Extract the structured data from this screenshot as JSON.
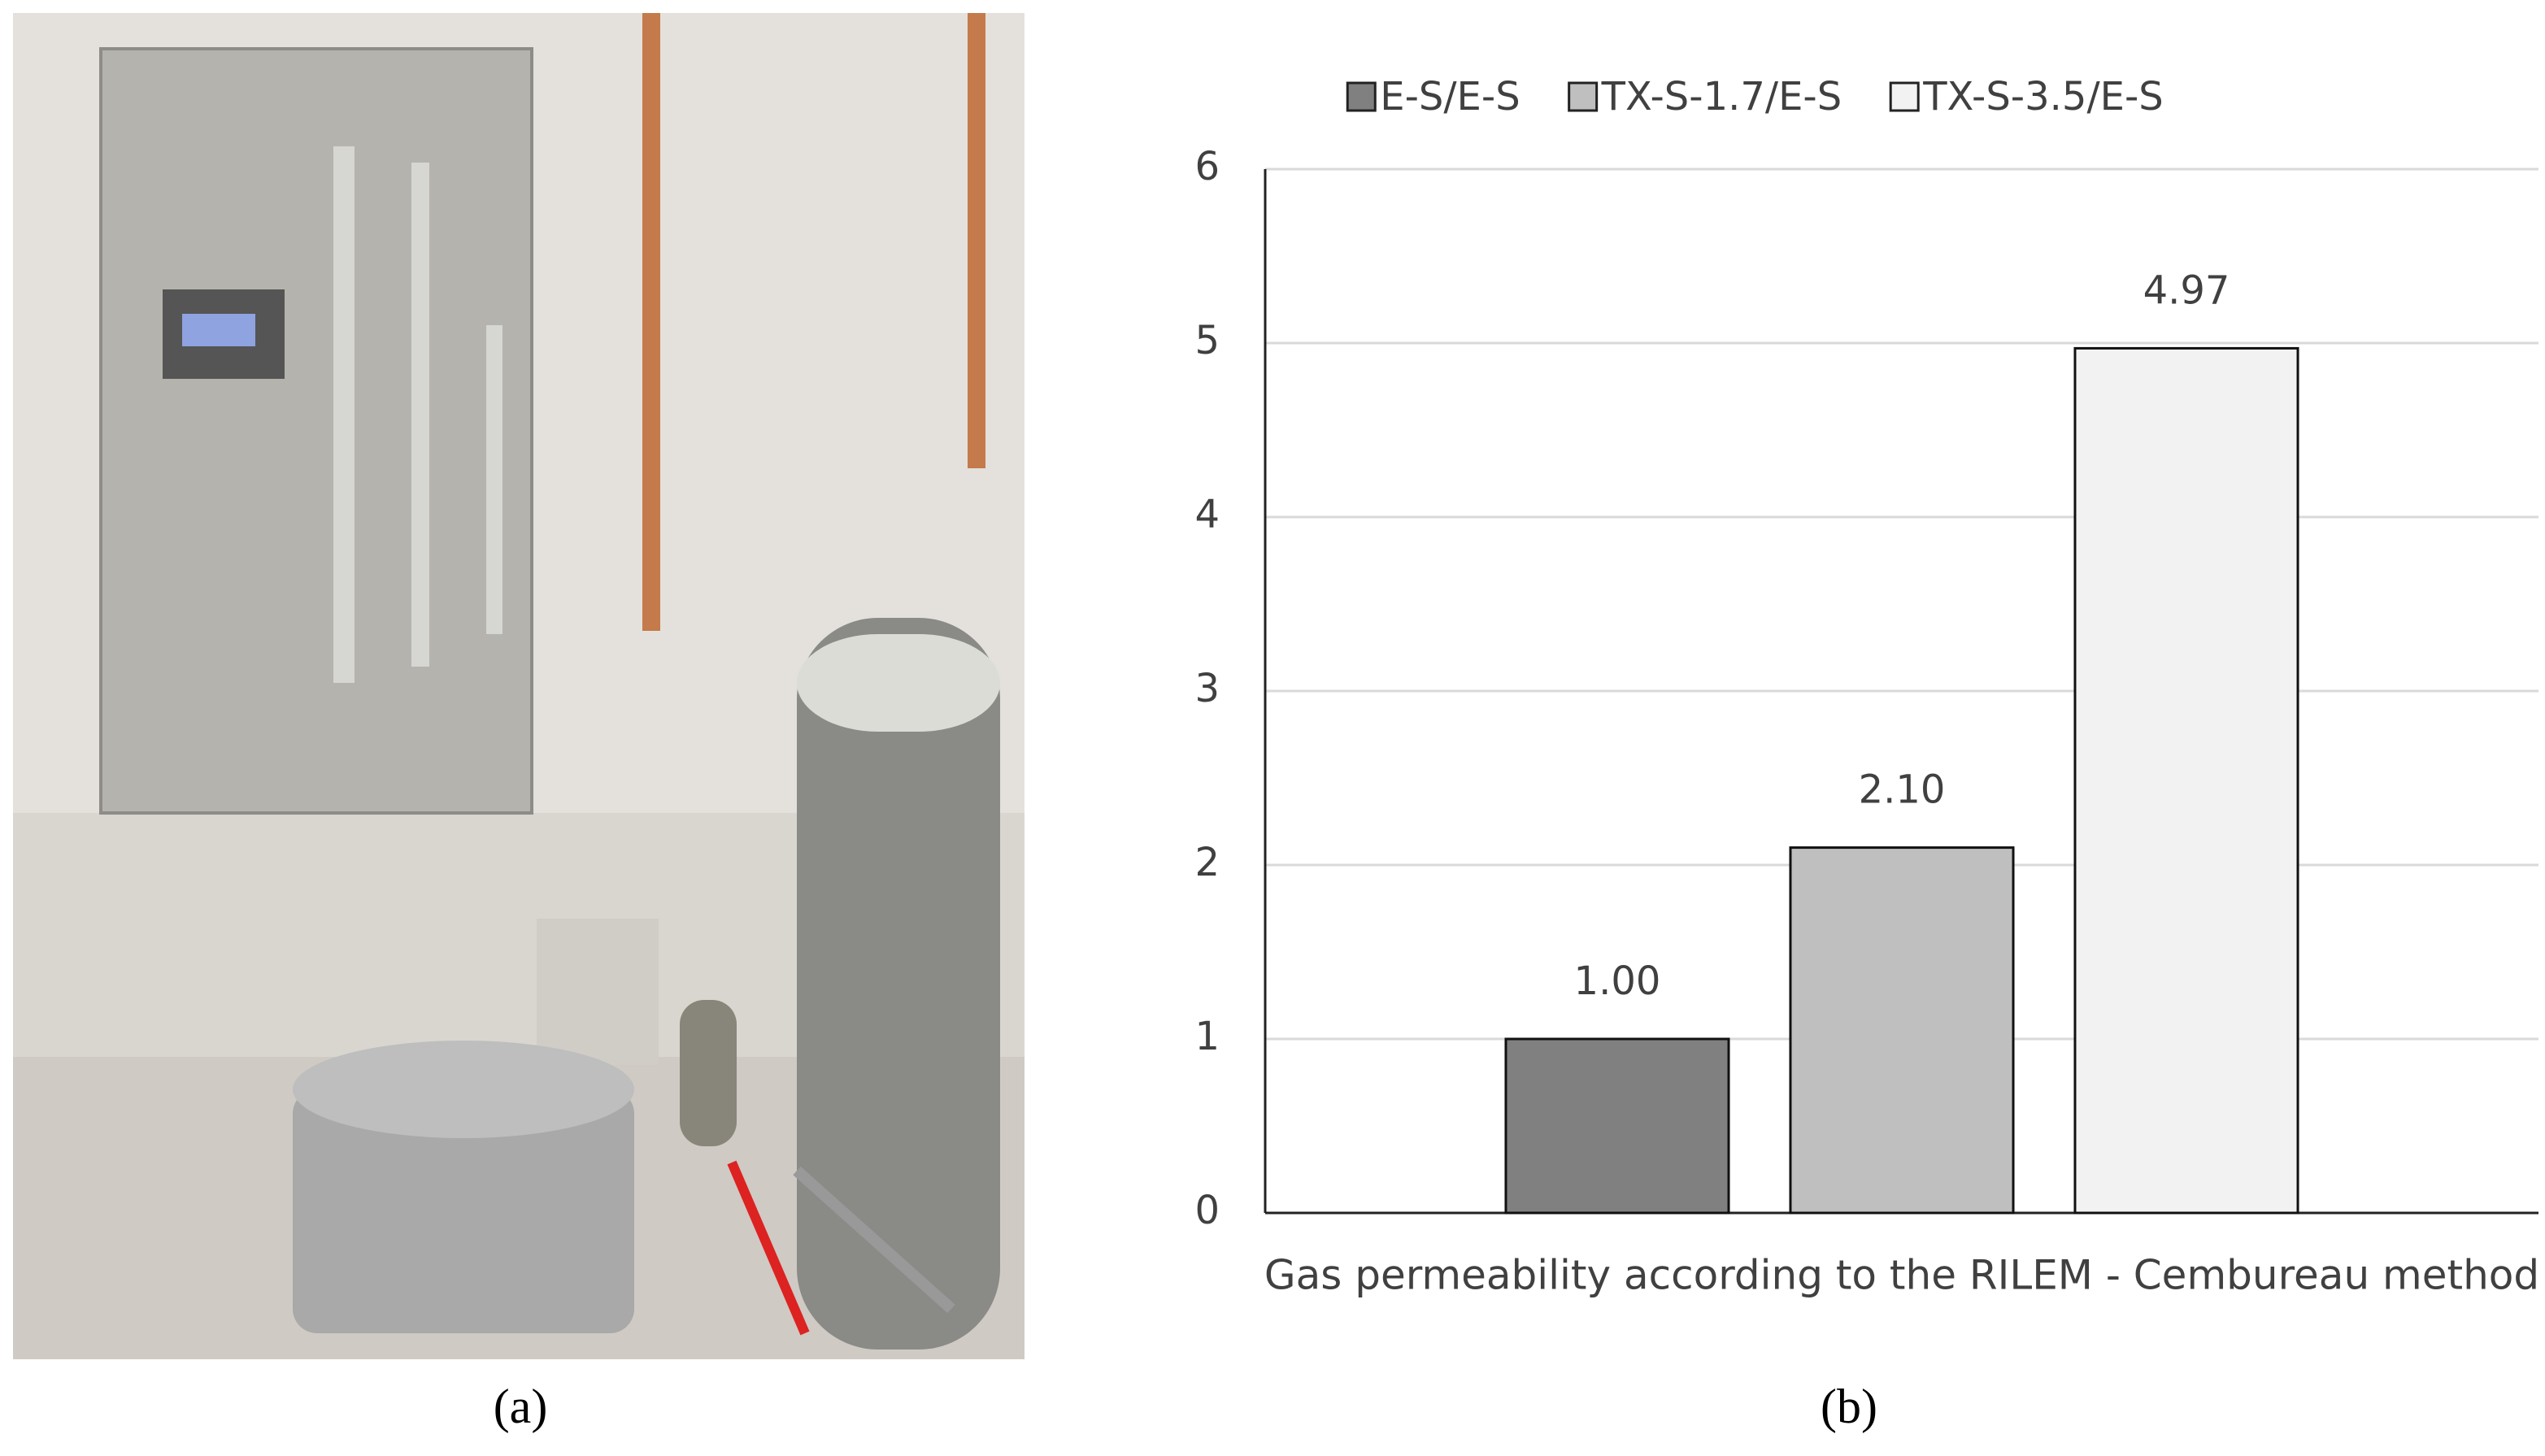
{
  "labels": [
    "(a)",
    "(b)"
  ],
  "chart_data": {
    "type": "bar",
    "categories": [
      "Gas permeability according to the RILEM - Cembureau method"
    ],
    "series": [
      {
        "name": "E-S/E-S",
        "color": "#808080",
        "values": [
          1.0
        ],
        "value_labels": [
          "1.00"
        ]
      },
      {
        "name": "TX-S-1.7/E-S",
        "color": "#bfbfbf",
        "values": [
          2.1
        ],
        "value_labels": [
          "2.10"
        ]
      },
      {
        "name": "TX-S-3.5/E-S",
        "color": "#f2f2f2",
        "values": [
          4.97
        ],
        "value_labels": [
          "4.97"
        ]
      }
    ],
    "ylim": [
      0,
      6
    ],
    "yticks": [
      0,
      1,
      2,
      3,
      4,
      5,
      6
    ],
    "grid": true,
    "legend": "top"
  }
}
